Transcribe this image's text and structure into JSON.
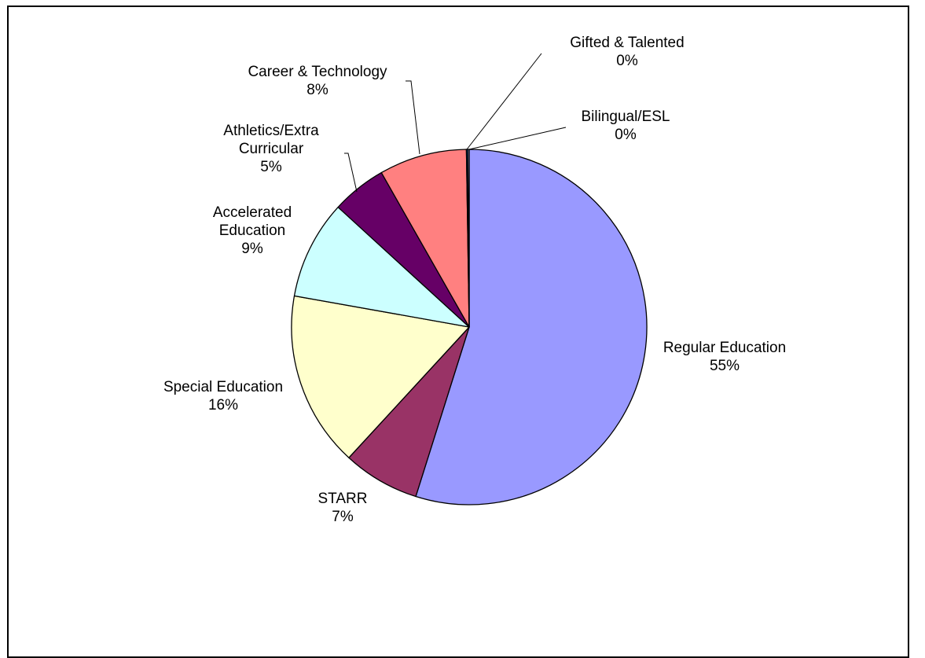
{
  "chart_data": {
    "type": "pie",
    "title": "",
    "slices": [
      {
        "name": "Regular Education",
        "value": 55,
        "percent_label": "55%",
        "color": "#9999FF"
      },
      {
        "name": "STARR",
        "value": 7,
        "percent_label": "7%",
        "color": "#993366"
      },
      {
        "name": "Special Education",
        "value": 16,
        "percent_label": "16%",
        "color": "#FFFFCC"
      },
      {
        "name": "Accelerated Education",
        "value": 9,
        "percent_label": "9%",
        "color": "#CCFFFF"
      },
      {
        "name": "Athletics/Extra Curricular",
        "value": 5,
        "percent_label": "5%",
        "color": "#660066"
      },
      {
        "name": "Career & Technology",
        "value": 8,
        "percent_label": "8%",
        "color": "#FF8080"
      },
      {
        "name": "Gifted & Talented",
        "value": 0,
        "percent_label": "0%",
        "color": "#0066CC"
      },
      {
        "name": "Bilingual/ESL",
        "value": 0,
        "percent_label": "0%",
        "color": "#CCCCFF"
      }
    ],
    "legend": "none",
    "data_labels": "category name and percentage, outside with leader lines"
  }
}
